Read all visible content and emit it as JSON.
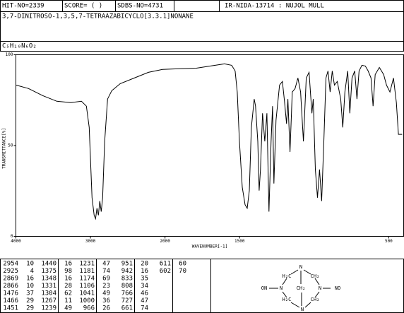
{
  "header": {
    "hit_no": "HIT-NO=2339",
    "score": "SCORE=  (   )",
    "sdbs_no": "SDBS-NO=4731",
    "method": "IR-NIDA-13714 : NUJOL MULL",
    "name": "3,7-DINITROSO-1,3,5,7-TETRAAZABICYCLO[3.3.1]NONANE",
    "formula": "C₅H₁₀N₆O₂"
  },
  "chart_data": {
    "type": "line",
    "xlabel": "WAVENUMBER[-1]",
    "ylabel": "TRANSMITTANCE[%]",
    "color": "#000000",
    "xlim": [
      4000,
      400
    ],
    "ylim": [
      0,
      100
    ],
    "xticks": [
      4000,
      3000,
      2000,
      1500,
      500
    ],
    "yticks": [
      0,
      50,
      100
    ],
    "x_scale_change": {
      "below": 2000,
      "factor": 2
    },
    "x": [
      4000,
      3830,
      3641,
      3452,
      3263,
      3121,
      3055,
      3017,
      2979,
      2951,
      2932,
      2913,
      2894,
      2875,
      2856,
      2837,
      2809,
      2771,
      2715,
      2601,
      2412,
      2223,
      2034,
      1931,
      1790,
      1695,
      1601,
      1553,
      1530,
      1516,
      1501,
      1482,
      1463,
      1449,
      1435,
      1421,
      1402,
      1393,
      1378,
      1369,
      1360,
      1346,
      1331,
      1317,
      1303,
      1289,
      1279,
      1270,
      1256,
      1232,
      1213,
      1199,
      1185,
      1176,
      1162,
      1147,
      1128,
      1109,
      1091,
      1072,
      1053,
      1034,
      1015,
      1006,
      992,
      978,
      964,
      950,
      935,
      921,
      907,
      893,
      879,
      864,
      845,
      822,
      808,
      794,
      775,
      761,
      746,
      728,
      713,
      699,
      680,
      657,
      638,
      619,
      605,
      591,
      563,
      534,
      515,
      492,
      468,
      449,
      435,
      410
    ],
    "values": [
      83.3,
      81.4,
      77.5,
      74.4,
      73.6,
      74.4,
      71.7,
      60,
      21.3,
      11.6,
      9.7,
      15.5,
      11.6,
      19.4,
      13.6,
      21.3,
      52.3,
      75.6,
      80.2,
      84.1,
      87.2,
      90.3,
      91.9,
      92.2,
      92.6,
      93.8,
      95,
      94.2,
      91.1,
      79.5,
      52.3,
      27.1,
      17.4,
      15.5,
      25.2,
      60,
      75.6,
      71.7,
      52.3,
      25.2,
      36.8,
      67.8,
      52.3,
      67.8,
      13.6,
      52.3,
      71.7,
      29.1,
      64,
      83.3,
      85.3,
      74.4,
      62,
      75.6,
      46.5,
      79.5,
      81.4,
      87.2,
      79.5,
      52.3,
      87.2,
      90.3,
      67.8,
      75.6,
      36.8,
      21.3,
      36.8,
      19.4,
      52.3,
      87.2,
      91.1,
      79.5,
      91.1,
      83.3,
      85.3,
      75.6,
      60,
      79.5,
      91.1,
      67.8,
      87.2,
      91.1,
      75.6,
      91.1,
      94.2,
      93.8,
      91.1,
      87.2,
      71.7,
      89.1,
      93,
      89.1,
      83.3,
      79.5,
      87.2,
      73.6,
      56.2,
      56.2
    ]
  },
  "peak_table": [
    [
      [
        2954,
        10
      ],
      [
        2925,
        4
      ],
      [
        2869,
        16
      ],
      [
        2866,
        10
      ],
      [
        1476,
        37
      ],
      [
        1466,
        29
      ],
      [
        1451,
        29
      ]
    ],
    [
      [
        1440,
        16
      ],
      [
        1375,
        98
      ],
      [
        1348,
        16
      ],
      [
        1331,
        28
      ],
      [
        1304,
        62
      ],
      [
        1267,
        11
      ],
      [
        1239,
        49
      ]
    ],
    [
      [
        1231,
        47
      ],
      [
        1181,
        74
      ],
      [
        1174,
        69
      ],
      [
        1106,
        23
      ],
      [
        1041,
        49
      ],
      [
        1000,
        36
      ],
      [
        966,
        26
      ]
    ],
    [
      [
        951,
        20
      ],
      [
        942,
        16
      ],
      [
        833,
        35
      ],
      [
        808,
        34
      ],
      [
        766,
        46
      ],
      [
        727,
        47
      ],
      [
        661,
        74
      ]
    ],
    [
      [
        611,
        60
      ],
      [
        602,
        70
      ]
    ]
  ],
  "structure": {
    "labels": [
      "N",
      "H₂C",
      "CH₂",
      "ON",
      "N",
      "CH₂",
      "N",
      "NO",
      "H₂C",
      "CH₂",
      "N"
    ]
  }
}
